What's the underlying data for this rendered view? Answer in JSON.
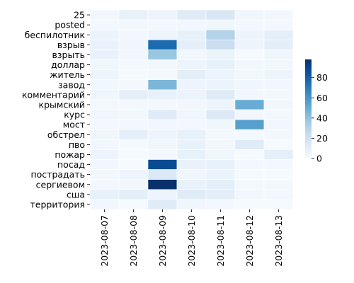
{
  "chart_data": {
    "type": "heatmap",
    "title": "",
    "xlabel": "",
    "ylabel": "",
    "x_categories": [
      "2023-08-07",
      "2023-08-08",
      "2023-08-09",
      "2023-08-10",
      "2023-08-11",
      "2023-08-12",
      "2023-08-13"
    ],
    "y_categories": [
      "25",
      "posted",
      "беспилотник",
      "взрыв",
      "взрыть",
      "доллар",
      "житель",
      "завод",
      "комментарий",
      "крымский",
      "курс",
      "мост",
      "обстрел",
      "пво",
      "пожар",
      "посад",
      "пострадать",
      "сергиевом",
      "сша",
      "территория"
    ],
    "values": [
      [
        3,
        8,
        5,
        12,
        15,
        4,
        3
      ],
      [
        2,
        3,
        2,
        3,
        4,
        2,
        2
      ],
      [
        6,
        3,
        5,
        8,
        30,
        5,
        9
      ],
      [
        7,
        4,
        76,
        9,
        22,
        5,
        10
      ],
      [
        7,
        3,
        38,
        3,
        6,
        1,
        4
      ],
      [
        4,
        2,
        3,
        5,
        8,
        3,
        3
      ],
      [
        5,
        1,
        2,
        10,
        6,
        3,
        5
      ],
      [
        3,
        2,
        45,
        5,
        6,
        4,
        3
      ],
      [
        4,
        9,
        8,
        6,
        12,
        3,
        2
      ],
      [
        2,
        2,
        2,
        3,
        5,
        50,
        3
      ],
      [
        4,
        3,
        12,
        4,
        14,
        3,
        2
      ],
      [
        2,
        2,
        3,
        2,
        4,
        55,
        3
      ],
      [
        4,
        9,
        5,
        8,
        2,
        2,
        2
      ],
      [
        3,
        1,
        4,
        7,
        3,
        12,
        1
      ],
      [
        5,
        1,
        2,
        8,
        4,
        1,
        9
      ],
      [
        3,
        1,
        88,
        7,
        8,
        2,
        2
      ],
      [
        2,
        5,
        14,
        4,
        6,
        1,
        1
      ],
      [
        2,
        3,
        98,
        7,
        9,
        2,
        2
      ],
      [
        8,
        10,
        5,
        12,
        10,
        3,
        2
      ],
      [
        3,
        1,
        12,
        4,
        2,
        1,
        1
      ]
    ],
    "colorbar": {
      "ticks": [
        0,
        20,
        40,
        60,
        80
      ],
      "min": 0,
      "max": 98,
      "colormap": "Blues"
    }
  }
}
